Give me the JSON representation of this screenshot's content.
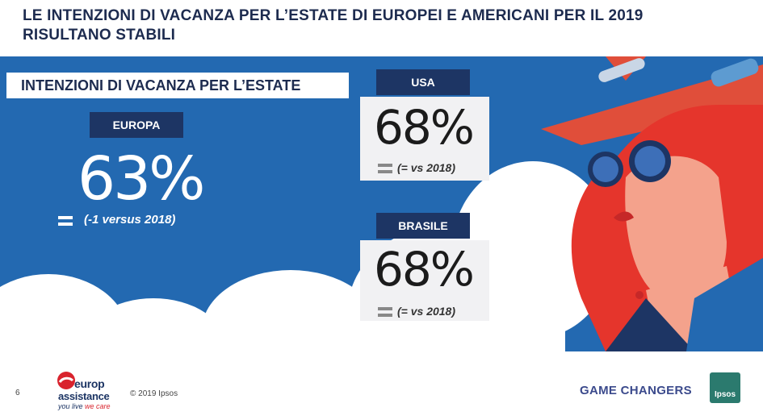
{
  "header": {
    "title_line1": "LE INTENZIONI DI VACANZA PER L’ESTATE DI EUROPEI E AMERICANI PER IL 2019",
    "title_line2": "RISULTANO STABILI"
  },
  "section_label": "INTENZIONI DI VACANZA PER L’ESTATE",
  "europa": {
    "label": "EUROPA",
    "value": "63%",
    "change": "(-1 versus 2018)",
    "trend": "equal"
  },
  "usa": {
    "label": "USA",
    "value": "68%",
    "change": "(= vs 2018)",
    "trend": "equal"
  },
  "brasile": {
    "label": "BRASILE",
    "value": "68%",
    "change": "(= vs 2018)",
    "trend": "equal"
  },
  "colors": {
    "navy": "#1d3564",
    "blue_band": "#2369b1",
    "card_bg": "#f1f1f3",
    "title": "#1d2b4f",
    "red": "#d9232d"
  },
  "footer": {
    "page_number": "6",
    "copyright": "© 2019 Ipsos",
    "tagline": "GAME CHANGERS",
    "ipsos_logo": "Ipsos",
    "ea_logo_line1": "europ",
    "ea_logo_line2": "assistance",
    "ea_logo_line3a": "you live",
    "ea_logo_line3b": "we care"
  },
  "icons": {
    "equal": "equal-sign-icon",
    "illustration": "woman-with-sunglasses-illustration"
  }
}
